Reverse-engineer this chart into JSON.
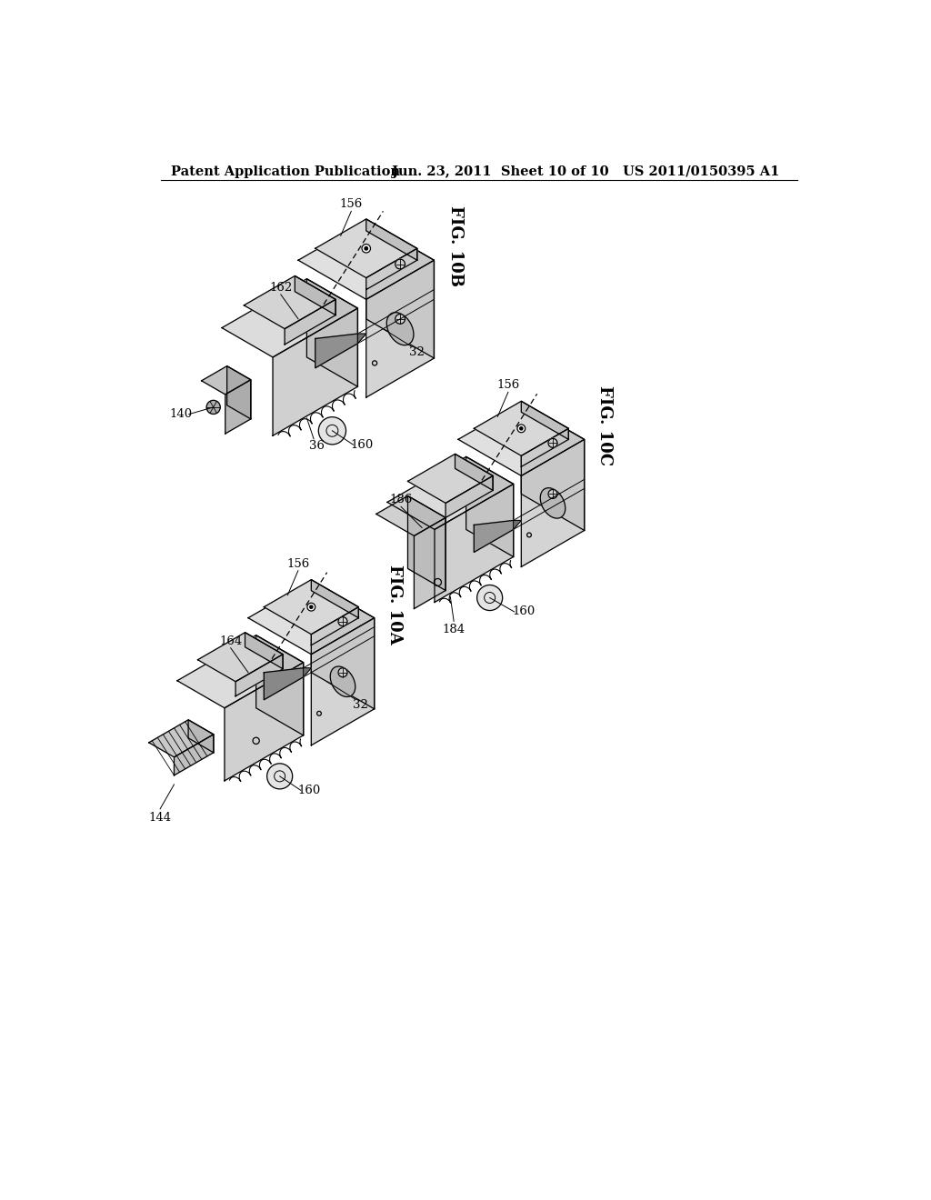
{
  "background_color": "#ffffff",
  "header_left": "Patent Application Publication",
  "header_center": "Jun. 23, 2011  Sheet 10 of 10",
  "header_right": "US 2011/0150395 A1",
  "fig_10b_label": "FIG. 10B",
  "fig_10c_label": "FIG. 10C",
  "fig_10a_label": "FIG. 10A",
  "line_color": "#000000",
  "fill_light": "#e8e8e8",
  "fill_mid": "#d0d0d0",
  "fill_dark": "#b8b8b8",
  "fill_darker": "#a0a0a0"
}
